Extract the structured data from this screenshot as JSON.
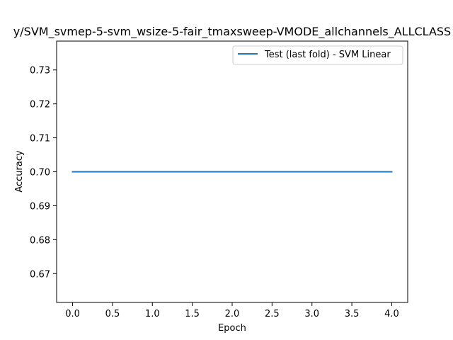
{
  "chart_data": {
    "type": "line",
    "title": "y/SVM_svmep-5-svm_wsize-5-fair_tmaxsweep-VMODE_allchannels_ALLCLASS",
    "xlabel": "Epoch",
    "ylabel": "Accuracy",
    "xlim": [
      -0.2,
      4.2
    ],
    "ylim": [
      0.6615,
      0.7385
    ],
    "xticks": [
      0.0,
      0.5,
      1.0,
      1.5,
      2.0,
      2.5,
      3.0,
      3.5,
      4.0
    ],
    "xtick_labels": [
      "0.0",
      "0.5",
      "1.0",
      "1.5",
      "2.0",
      "2.5",
      "3.0",
      "3.5",
      "4.0"
    ],
    "yticks": [
      0.67,
      0.68,
      0.69,
      0.7,
      0.71,
      0.72,
      0.73
    ],
    "ytick_labels": [
      "0.67",
      "0.68",
      "0.69",
      "0.70",
      "0.71",
      "0.72",
      "0.73"
    ],
    "grid": false,
    "legend_position": "top-right",
    "series": [
      {
        "name": "Test (last fold) - SVM Linear",
        "color": "#1f77b4",
        "x": [
          0,
          1,
          2,
          3,
          4
        ],
        "y": [
          0.7,
          0.7,
          0.7,
          0.7,
          0.7
        ]
      }
    ]
  }
}
